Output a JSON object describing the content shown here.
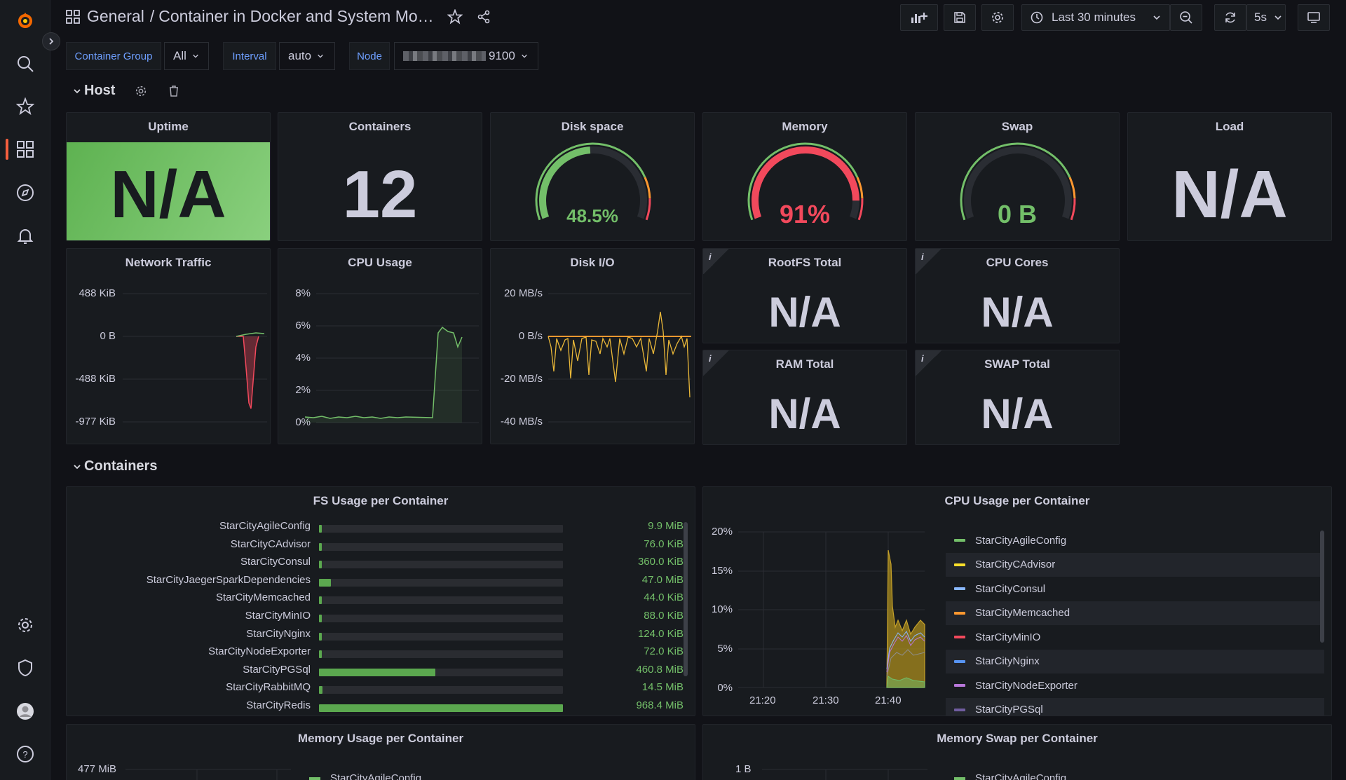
{
  "breadcrumb": {
    "folder": "General",
    "separator": "/",
    "title": "Container in Docker and System Mon..."
  },
  "toolbar": {
    "time_range": "Last 30 minutes",
    "refresh_interval": "5s"
  },
  "variables": [
    {
      "label": "Container Group",
      "value": "All"
    },
    {
      "label": "Interval",
      "value": "auto"
    },
    {
      "label": "Node",
      "value": "9100"
    }
  ],
  "rows": {
    "host": "Host",
    "containers": "Containers"
  },
  "panels": {
    "uptime": {
      "title": "Uptime",
      "value": "N/A",
      "color": "#73bf69"
    },
    "containers": {
      "title": "Containers",
      "value": "12"
    },
    "disk_space": {
      "title": "Disk space",
      "value": "48.5%",
      "fraction": 0.485,
      "color": "#73bf69"
    },
    "memory": {
      "title": "Memory",
      "value": "91%",
      "fraction": 0.91,
      "color": "#f2495c"
    },
    "swap": {
      "title": "Swap",
      "value": "0 B",
      "fraction": 0,
      "color": "#73bf69"
    },
    "load": {
      "title": "Load",
      "value": "N/A"
    },
    "network": {
      "title": "Network Traffic",
      "y_ticks": [
        "488 KiB",
        "0 B",
        "-488 KiB",
        "-977 KiB"
      ]
    },
    "cpu": {
      "title": "CPU Usage",
      "y_ticks": [
        "8%",
        "6%",
        "4%",
        "2%",
        "0%"
      ]
    },
    "disk_io": {
      "title": "Disk I/O",
      "y_ticks": [
        "20 MB/s",
        "0 B/s",
        "-20 MB/s",
        "-40 MB/s"
      ]
    },
    "rootfs": {
      "title": "RootFS Total",
      "value": "N/A",
      "info": "i"
    },
    "cpu_cores": {
      "title": "CPU Cores",
      "value": "N/A",
      "info": "i"
    },
    "ram_total": {
      "title": "RAM Total",
      "value": "N/A",
      "info": "i"
    },
    "swap_total": {
      "title": "SWAP Total",
      "value": "N/A",
      "info": "i"
    },
    "fs_usage": {
      "title": "FS Usage per Container"
    },
    "cpu_per_container": {
      "title": "CPU Usage per Container",
      "y_ticks": [
        "20%",
        "15%",
        "10%",
        "5%",
        "0%"
      ],
      "x_ticks": [
        "21:20",
        "21:30",
        "21:40"
      ]
    },
    "mem_per_container": {
      "title": "Memory Usage per Container",
      "y_tick": "477 MiB",
      "legend_first": "StarCityAgileConfig"
    },
    "swap_per_container": {
      "title": "Memory Swap per Container",
      "y_tick": "1 B",
      "legend_first": "StarCityAgileConfig"
    }
  },
  "chart_data": [
    {
      "type": "bar",
      "title": "FS Usage per Container",
      "categories": [
        "StarCityAgileConfig",
        "StarCityCAdvisor",
        "StarCityConsul",
        "StarCityJaegerSparkDependencies",
        "StarCityMemcached",
        "StarCityMinIO",
        "StarCityNginx",
        "StarCityNodeExporter",
        "StarCityPGSql",
        "StarCityRabbitMQ",
        "StarCityRedis"
      ],
      "labels": [
        "9.9 MiB",
        "76.0 KiB",
        "360.0 KiB",
        "47.0 MiB",
        "44.0 KiB",
        "88.0 KiB",
        "124.0 KiB",
        "72.0 KiB",
        "460.8 MiB",
        "14.5 MiB",
        "968.4 MiB"
      ],
      "values": [
        9.9,
        0.074,
        0.352,
        47.0,
        0.043,
        0.086,
        0.121,
        0.07,
        460.8,
        14.5,
        968.4
      ],
      "unit": "MiB"
    },
    {
      "type": "area",
      "title": "CPU Usage per Container",
      "x_ticks": [
        "21:20",
        "21:30",
        "21:40"
      ],
      "ylim": [
        0,
        20
      ],
      "legend": [
        {
          "name": "StarCityAgileConfig",
          "color": "#73bf69"
        },
        {
          "name": "StarCityCAdvisor",
          "color": "#fade2a"
        },
        {
          "name": "StarCityConsul",
          "color": "#8ab8ff"
        },
        {
          "name": "StarCityMemcached",
          "color": "#ff9830"
        },
        {
          "name": "StarCityMinIO",
          "color": "#f2495c"
        },
        {
          "name": "StarCityNginx",
          "color": "#5794f2"
        },
        {
          "name": "StarCityNodeExporter",
          "color": "#b877d9"
        },
        {
          "name": "StarCityPGSql",
          "color": "#705da0"
        }
      ]
    }
  ]
}
